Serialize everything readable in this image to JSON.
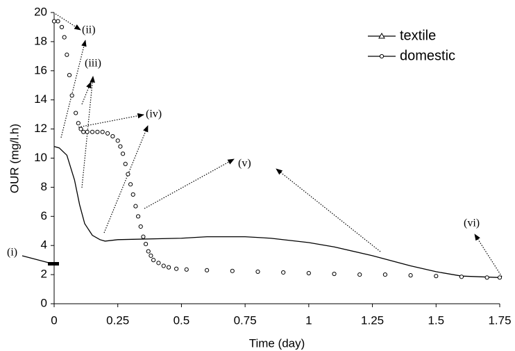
{
  "chart_data": {
    "type": "line",
    "x_label": "Time (day)",
    "y_label": "OUR (mg/l.h)",
    "xlim": [
      0,
      1.75
    ],
    "xticks": [
      0,
      0.25,
      0.5,
      0.75,
      1,
      1.25,
      1.5,
      1.75
    ],
    "ylim": [
      0,
      20
    ],
    "yticks": [
      0,
      2,
      4,
      6,
      8,
      10,
      12,
      14,
      16,
      18,
      20
    ],
    "grid": false,
    "legend": "upper right",
    "annotations": [
      "(i)",
      "(ii)",
      "(iii)",
      "(iv)",
      "(v)",
      "(vi)"
    ],
    "series": [
      {
        "name": "textile",
        "color": "#000000",
        "marker": "triangle",
        "x": [
          0,
          0.02,
          0.05,
          0.08,
          0.1,
          0.12,
          0.15,
          0.18,
          0.2,
          0.25,
          0.5,
          0.6,
          0.75,
          0.85,
          1,
          1.1,
          1.25,
          1.4,
          1.5,
          1.6,
          1.75
        ],
        "values": [
          10.8,
          10.7,
          10.2,
          8.5,
          6.8,
          5.5,
          4.7,
          4.4,
          4.3,
          4.4,
          4.5,
          4.6,
          4.6,
          4.5,
          4.2,
          3.9,
          3.3,
          2.6,
          2.2,
          1.9,
          1.8
        ]
      },
      {
        "name": "domestic",
        "color": "#000000",
        "marker": "circle",
        "x": [
          0,
          0.015,
          0.03,
          0.04,
          0.05,
          0.06,
          0.07,
          0.085,
          0.095,
          0.105,
          0.115,
          0.13,
          0.15,
          0.17,
          0.19,
          0.21,
          0.23,
          0.25,
          0.26,
          0.27,
          0.28,
          0.29,
          0.3,
          0.31,
          0.32,
          0.33,
          0.34,
          0.35,
          0.36,
          0.37,
          0.38,
          0.39,
          0.41,
          0.43,
          0.45,
          0.48,
          0.52,
          0.6,
          0.7,
          0.8,
          0.9,
          1.0,
          1.1,
          1.2,
          1.3,
          1.4,
          1.5,
          1.6,
          1.7,
          1.75
        ],
        "values": [
          19.4,
          19.4,
          19,
          18.3,
          17.1,
          15.7,
          14.3,
          13.1,
          12.4,
          12,
          11.8,
          11.8,
          11.8,
          11.8,
          11.8,
          11.7,
          11.5,
          11.2,
          10.8,
          10.3,
          9.6,
          8.9,
          8.2,
          7.5,
          6.7,
          6.0,
          5.3,
          4.6,
          4.1,
          3.6,
          3.3,
          3.0,
          2.8,
          2.6,
          2.5,
          2.4,
          2.35,
          2.3,
          2.25,
          2.2,
          2.15,
          2.1,
          2.05,
          2.0,
          2.0,
          1.95,
          1.9,
          1.85,
          1.8,
          1.8
        ]
      }
    ]
  }
}
